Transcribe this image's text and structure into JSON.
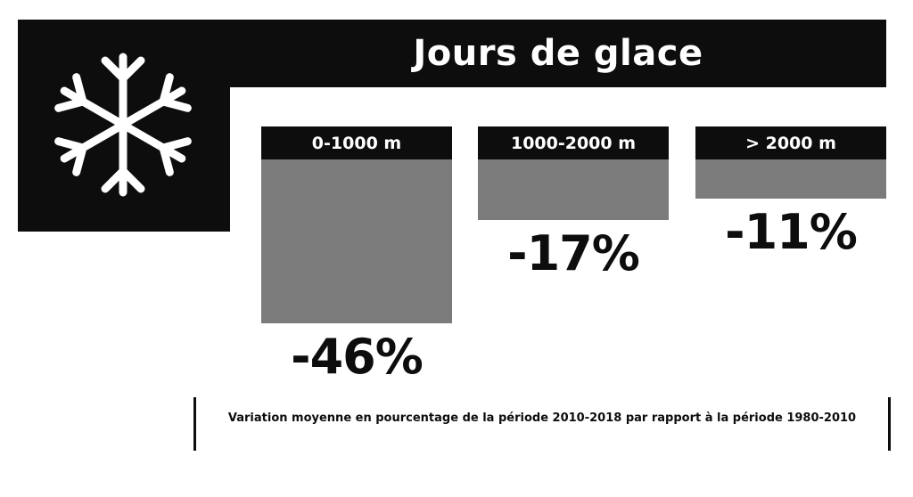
{
  "title": "Jours de glace",
  "icon": "snowflake-icon",
  "colors": {
    "dark": "#0d0d0d",
    "bar": "#7b7b7b",
    "background": "#ffffff"
  },
  "chart_data": {
    "type": "bar",
    "categories": [
      "0-1000 m",
      "1000-2000 m",
      "> 2000 m"
    ],
    "values": [
      -46,
      -17,
      -11
    ],
    "value_labels": [
      "-46%",
      "-17%",
      "-11%"
    ],
    "unit": "%",
    "title": "Jours de glace",
    "xlabel": "",
    "ylabel": "",
    "ylim": [
      -46,
      0
    ],
    "grid": false,
    "legend": "none"
  },
  "footnote": "Variation moyenne en pourcentage de la période 2010-2018 par rapport à la période 1980-2010"
}
